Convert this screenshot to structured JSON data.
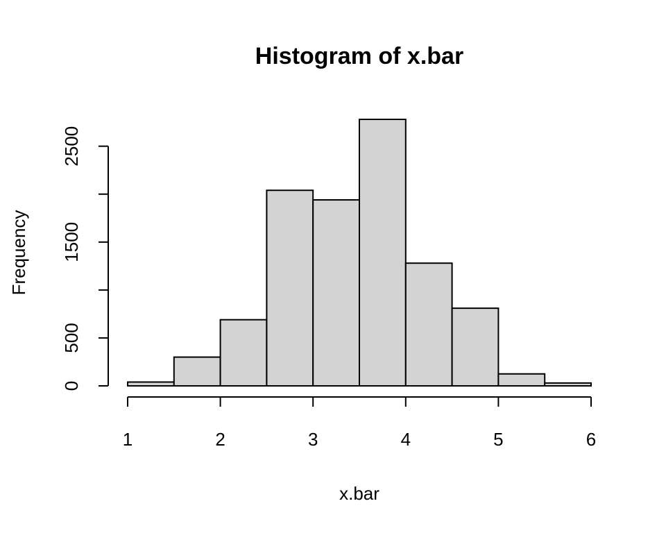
{
  "chart_data": {
    "type": "bar",
    "title": "Histogram of x.bar",
    "xlabel": "x.bar",
    "ylabel": "Frequency",
    "bins": [
      [
        1.0,
        1.5
      ],
      [
        1.5,
        2.0
      ],
      [
        2.0,
        2.5
      ],
      [
        2.5,
        3.0
      ],
      [
        3.0,
        3.5
      ],
      [
        3.5,
        4.0
      ],
      [
        4.0,
        4.5
      ],
      [
        4.5,
        5.0
      ],
      [
        5.0,
        5.5
      ],
      [
        5.5,
        6.0
      ]
    ],
    "values": [
      40,
      300,
      690,
      2040,
      1940,
      2780,
      1280,
      810,
      125,
      30
    ],
    "xlim": [
      1,
      6
    ],
    "ylim": [
      0,
      2780
    ],
    "x_ticks": [
      1,
      2,
      3,
      4,
      5,
      6
    ],
    "y_ticks": [
      0,
      500,
      1000,
      1500,
      2000,
      2500
    ],
    "y_tick_labels": [
      "0",
      "500",
      "",
      "1500",
      "",
      "2500"
    ],
    "bar_fill": "#d3d3d3",
    "bar_stroke": "#000000",
    "grid": false,
    "legend": "none"
  }
}
